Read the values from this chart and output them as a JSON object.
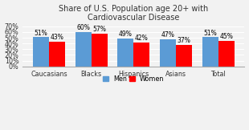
{
  "title": "Share of U.S. Population age 20+ with\nCardiovascular Disease",
  "categories": [
    "Caucasians",
    "Blacks",
    "Hispanics",
    "Asians",
    "Total"
  ],
  "men_values": [
    0.51,
    0.6,
    0.49,
    0.47,
    0.51
  ],
  "women_values": [
    0.43,
    0.57,
    0.42,
    0.37,
    0.45
  ],
  "men_color": "#5B9BD5",
  "women_color": "#FF0000",
  "ylim": [
    0,
    0.75
  ],
  "yticks": [
    0.0,
    0.1,
    0.2,
    0.3,
    0.4,
    0.5,
    0.6,
    0.7
  ],
  "ytick_labels": [
    "0%",
    "10%",
    "20%",
    "30%",
    "40%",
    "50%",
    "60%",
    "70%"
  ],
  "bar_width": 0.38,
  "title_fontsize": 7.0,
  "tick_fontsize": 5.8,
  "label_fontsize": 5.5,
  "legend_fontsize": 5.8,
  "background_color": "#F2F2F2"
}
